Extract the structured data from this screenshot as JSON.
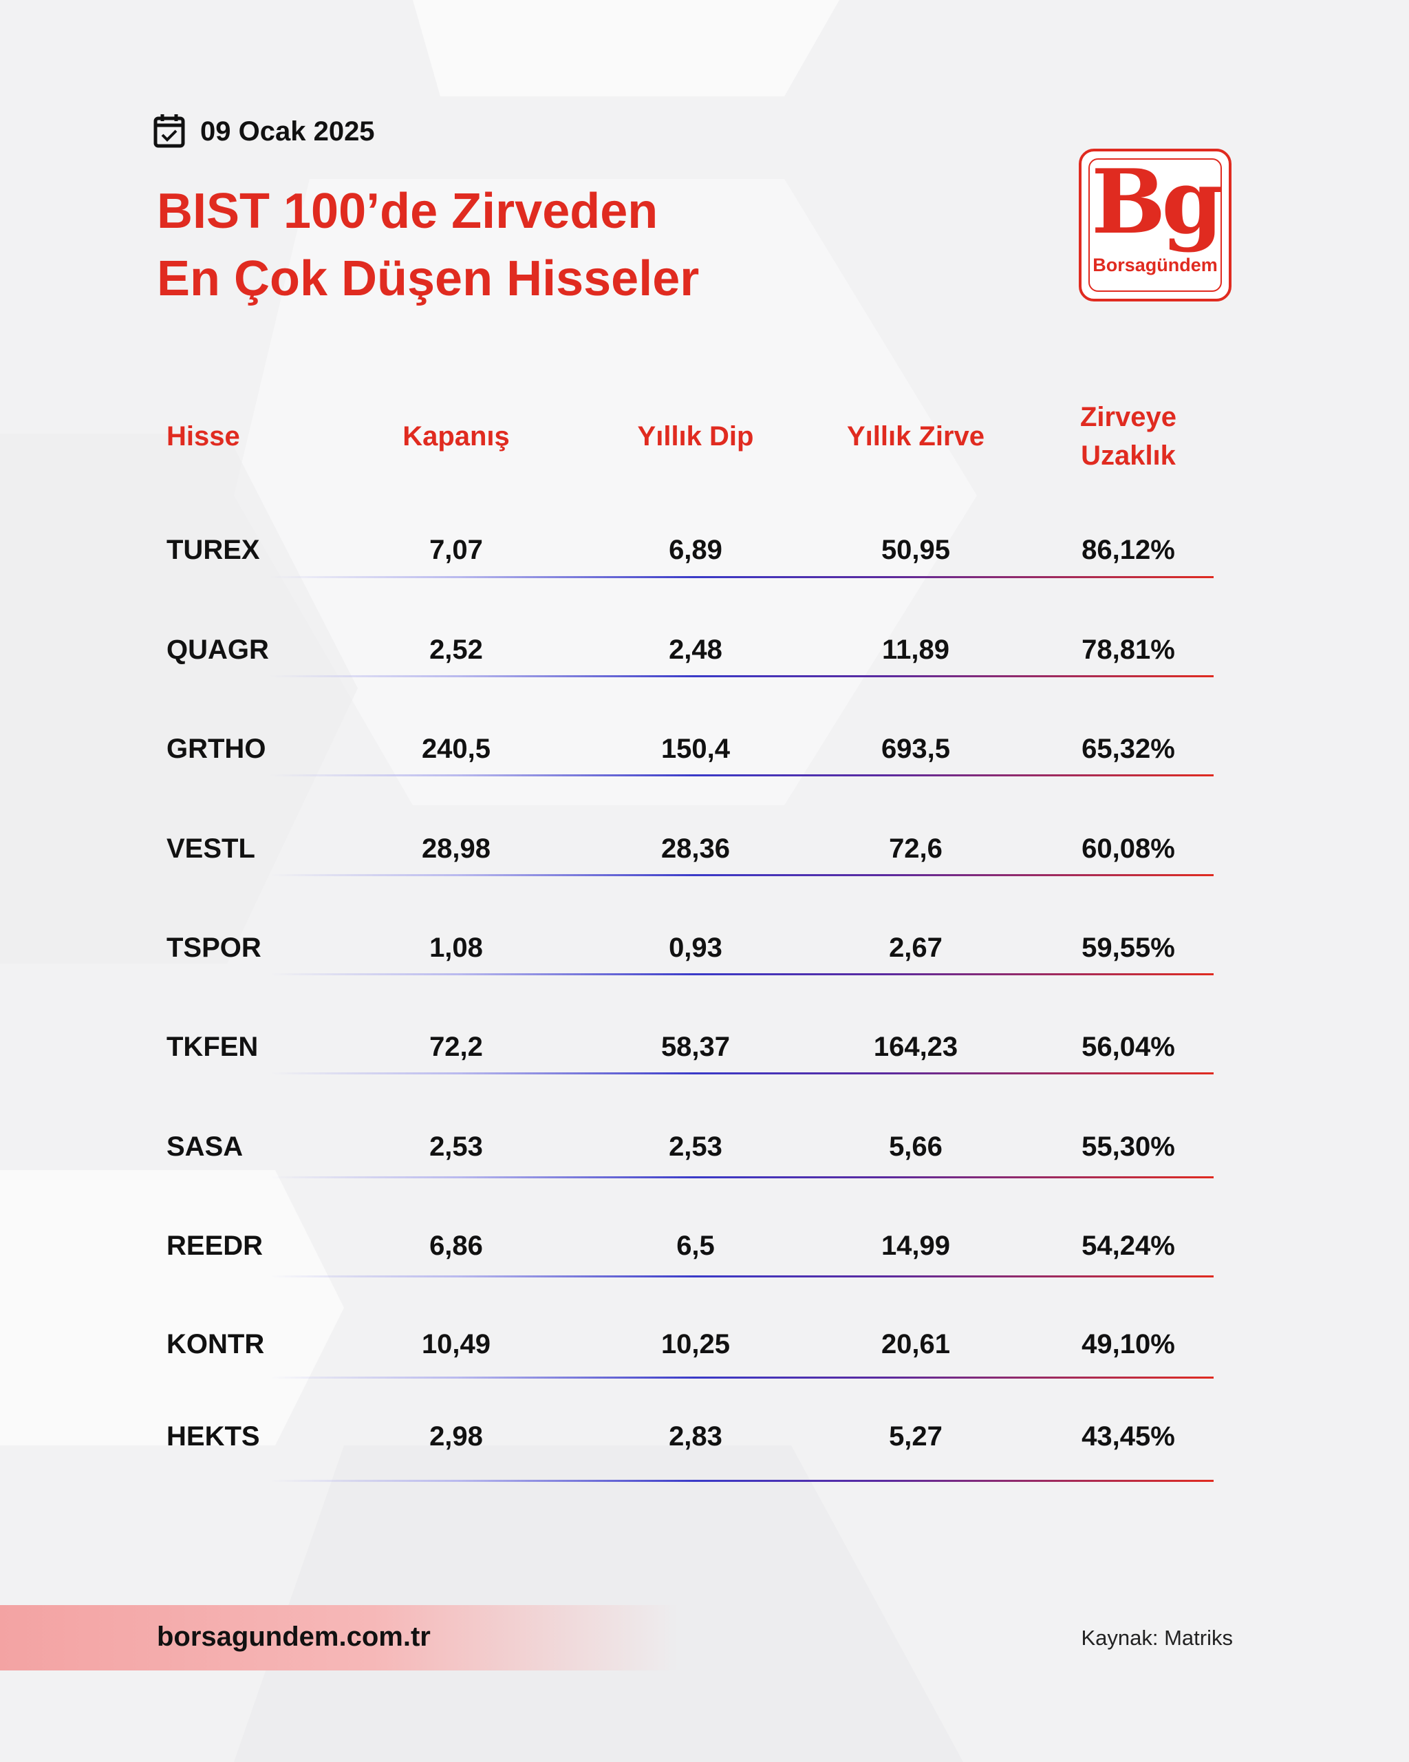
{
  "header": {
    "date": "09 Ocak 2025",
    "title_lines": [
      "BIST 100’de Zirveden",
      "En Çok Düşen Hisseler"
    ]
  },
  "logo": {
    "mark": "Bg",
    "name": "Borsagündem"
  },
  "table": {
    "columns": [
      "Hisse",
      "Kapanış",
      "Yıllık Dip",
      "Yıllık Zirve",
      "Zirveye Uzaklık"
    ],
    "rows": [
      [
        "TUREX",
        "7,07",
        "6,89",
        "50,95",
        "86,12%"
      ],
      [
        "QUAGR",
        "2,52",
        "2,48",
        "11,89",
        "78,81%"
      ],
      [
        "GRTHO",
        "240,5",
        "150,4",
        "693,5",
        "65,32%"
      ],
      [
        "VESTL",
        "28,98",
        "28,36",
        "72,6",
        "60,08%"
      ],
      [
        "TSPOR",
        "1,08",
        "0,93",
        "2,67",
        "59,55%"
      ],
      [
        "TKFEN",
        "72,2",
        "58,37",
        "164,23",
        "56,04%"
      ],
      [
        "SASA",
        "2,53",
        "2,53",
        "5,66",
        "55,30%"
      ],
      [
        "REEDR",
        "6,86",
        "6,5",
        "14,99",
        "54,24%"
      ],
      [
        "KONTR",
        "10,49",
        "10,25",
        "20,61",
        "49,10%"
      ],
      [
        "HEKTS",
        "2,98",
        "2,83",
        "5,27",
        "43,45%"
      ]
    ]
  },
  "footer": {
    "website": "borsagundem.com.tr",
    "source": "Kaynak:  Matriks"
  }
}
